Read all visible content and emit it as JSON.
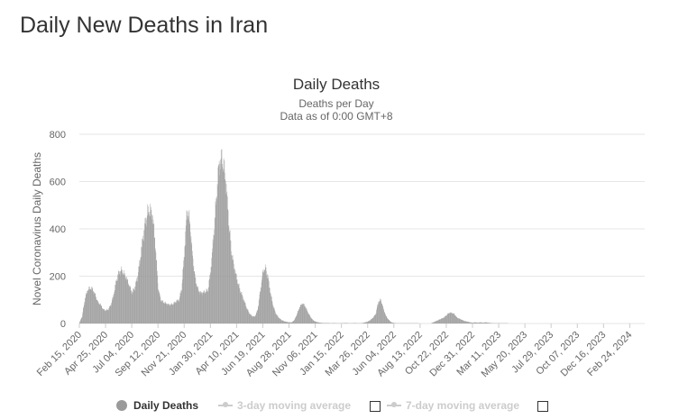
{
  "page": {
    "heading": "Daily New Deaths in Iran"
  },
  "legend": {
    "items": [
      {
        "label": "Daily Deaths",
        "active": true
      },
      {
        "label": "3-day moving average",
        "active": false
      },
      {
        "label": "7-day moving average",
        "active": false
      }
    ]
  },
  "colors": {
    "bar": "#9a9a9a",
    "grid": "#e6e6e6",
    "text": "#333333",
    "axis_text": "#666666",
    "inactive": "#cccccc"
  },
  "chart_data": {
    "type": "bar",
    "title": "Daily Deaths",
    "subtitle": "Deaths per Day",
    "subtitle2": "Data as of 0:00 GMT+8",
    "xlabel": "",
    "ylabel": "Novel Coronavirus Daily Deaths",
    "ylim": [
      0,
      800
    ],
    "yticks": [
      0,
      200,
      400,
      600,
      800
    ],
    "start_date": "Feb 15, 2020",
    "x_range_days": [
      0,
      1510
    ],
    "xticks": [
      {
        "label": "Feb 15, 2020",
        "day": 0
      },
      {
        "label": "Apr 25, 2020",
        "day": 70
      },
      {
        "label": "Jul 04, 2020",
        "day": 140
      },
      {
        "label": "Sep 12, 2020",
        "day": 210
      },
      {
        "label": "Nov 21, 2020",
        "day": 280
      },
      {
        "label": "Jan 30, 2021",
        "day": 350
      },
      {
        "label": "Apr 10, 2021",
        "day": 420
      },
      {
        "label": "Jun 19, 2021",
        "day": 490
      },
      {
        "label": "Aug 28, 2021",
        "day": 560
      },
      {
        "label": "Nov 06, 2021",
        "day": 630
      },
      {
        "label": "Jan 15, 2022",
        "day": 700
      },
      {
        "label": "Mar 26, 2022",
        "day": 770
      },
      {
        "label": "Jun 04, 2022",
        "day": 840
      },
      {
        "label": "Aug 13, 2022",
        "day": 910
      },
      {
        "label": "Oct 22, 2022",
        "day": 980
      },
      {
        "label": "Dec 31, 2022",
        "day": 1050
      },
      {
        "label": "Mar 11, 2023",
        "day": 1120
      },
      {
        "label": "May 20, 2023",
        "day": 1190
      },
      {
        "label": "Jul 29, 2023",
        "day": 1260
      },
      {
        "label": "Oct 07, 2023",
        "day": 1330
      },
      {
        "label": "Dec 16, 2023",
        "day": 1400
      },
      {
        "label": "Feb 24, 2024",
        "day": 1470
      }
    ],
    "series": [
      {
        "name": "Daily Deaths",
        "day_step": 7,
        "values": [
          5,
          30,
          100,
          140,
          150,
          145,
          120,
          90,
          80,
          60,
          55,
          60,
          80,
          120,
          180,
          215,
          225,
          210,
          190,
          160,
          130,
          150,
          190,
          260,
          350,
          420,
          470,
          480,
          450,
          320,
          150,
          100,
          90,
          85,
          80,
          80,
          85,
          95,
          100,
          150,
          300,
          480,
          440,
          300,
          200,
          150,
          130,
          130,
          135,
          140,
          220,
          350,
          500,
          650,
          700,
          670,
          580,
          420,
          300,
          240,
          190,
          150,
          120,
          90,
          60,
          40,
          30,
          30,
          60,
          140,
          220,
          235,
          190,
          120,
          70,
          40,
          25,
          15,
          10,
          7,
          5,
          5,
          15,
          40,
          70,
          85,
          75,
          50,
          30,
          15,
          8,
          5,
          3,
          2,
          2,
          2,
          1,
          2,
          1,
          1,
          1,
          2,
          2,
          1,
          1,
          2,
          1,
          1,
          2,
          5,
          8,
          15,
          25,
          40,
          90,
          100,
          60,
          30,
          15,
          5,
          2,
          1,
          1,
          1,
          1,
          1,
          1,
          1,
          1,
          1,
          0,
          0,
          0,
          0,
          0,
          5,
          10,
          15,
          20,
          25,
          35,
          45,
          45,
          40,
          25,
          20,
          15,
          10,
          8,
          5,
          3,
          5,
          3,
          5,
          3,
          5,
          3,
          2,
          1,
          1,
          1,
          1,
          1,
          1,
          0,
          0,
          0,
          0,
          0,
          0,
          0,
          0,
          0,
          0,
          0,
          0,
          0,
          0,
          0,
          0,
          0,
          0,
          0,
          0,
          0,
          0,
          0,
          0,
          0,
          0,
          0,
          0,
          0,
          0,
          0,
          0,
          0,
          0,
          0,
          0,
          0,
          0,
          0,
          0,
          0,
          0,
          0,
          0,
          0,
          0,
          0
        ]
      }
    ]
  }
}
